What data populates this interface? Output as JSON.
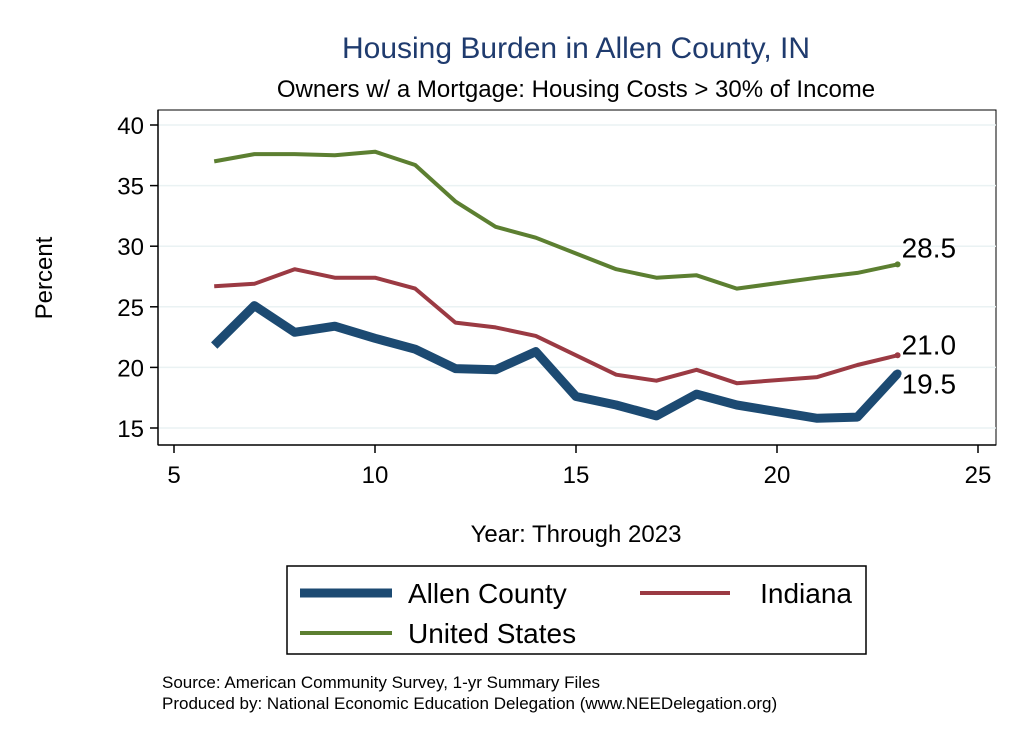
{
  "chart_data": {
    "type": "line",
    "title": "Housing Burden in Allen County, IN",
    "subtitle": "Owners w/ a Mortgage: Housing Costs > 30% of Income",
    "xlabel": "Year: Through 2023",
    "ylabel": "Percent",
    "xlim": [
      5,
      25
    ],
    "ylim": [
      15,
      40
    ],
    "xticks": [
      "5",
      "10",
      "15",
      "20",
      "25"
    ],
    "yticks": [
      "15",
      "20",
      "25",
      "30",
      "35",
      "40"
    ],
    "grid": true,
    "legend_position": "bottom",
    "x": [
      6,
      7,
      8,
      9,
      10,
      11,
      12,
      13,
      14,
      15,
      16,
      17,
      18,
      19,
      21,
      22,
      23
    ],
    "series": [
      {
        "name": "Allen County",
        "color": "#1c4a72",
        "values": [
          21.8,
          25.1,
          22.9,
          23.4,
          22.4,
          21.5,
          19.9,
          19.8,
          21.3,
          17.6,
          16.9,
          16.0,
          17.8,
          16.9,
          15.8,
          15.9,
          19.5
        ],
        "end_label": "19.5"
      },
      {
        "name": "Indiana",
        "color": "#9b3a43",
        "values": [
          26.7,
          26.9,
          28.1,
          27.4,
          27.4,
          26.5,
          23.7,
          23.3,
          22.6,
          21.0,
          19.4,
          18.9,
          19.8,
          18.7,
          19.2,
          20.2,
          21.0
        ],
        "end_label": "21.0"
      },
      {
        "name": "United States",
        "color": "#5c7f31",
        "values": [
          37.0,
          37.6,
          37.6,
          37.5,
          37.8,
          36.7,
          33.7,
          31.6,
          30.7,
          29.4,
          28.1,
          27.4,
          27.6,
          26.5,
          27.4,
          27.8,
          28.5
        ],
        "end_label": "28.5"
      }
    ],
    "notes": [
      "Source: American Community Survey, 1-yr Summary Files",
      "Produced by: National Economic Education Delegation (www.NEEDelegation.org)"
    ]
  }
}
